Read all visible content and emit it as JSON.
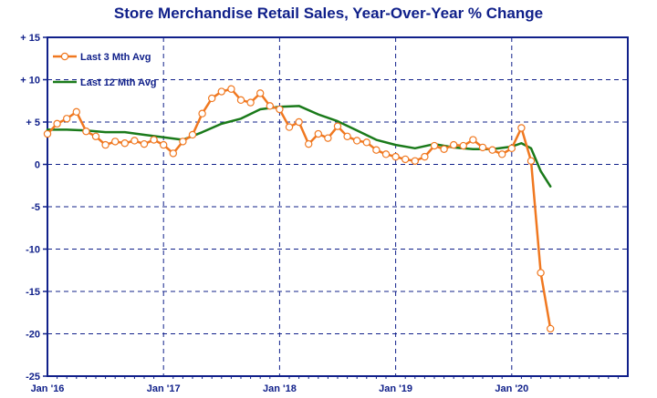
{
  "chart_data": {
    "type": "line",
    "title": "Store Merchandise Retail Sales, Year-Over-Year % Change",
    "xlabel": "",
    "ylabel": "",
    "ylim": [
      -25,
      15
    ],
    "y_ticks": [
      "+ 15",
      "+ 10",
      "+ 5",
      "0",
      "-5",
      "-10",
      "-15",
      "-20",
      "-25"
    ],
    "x_ticks": [
      "Jan '16",
      "Jan '17",
      "Jan '18",
      "Jan '19",
      "Jan '20"
    ],
    "legend": [
      "Last 3 Mth Avg",
      "Last 12 Mth Avg"
    ],
    "legend_position": "top-left",
    "grid": true,
    "colors": {
      "axis": "#10208a",
      "grid": "#10208a",
      "series_3m": "#f07820",
      "series_12m": "#1a7a1a"
    },
    "series": [
      {
        "name": "Last 3 Mth Avg",
        "marker": "circle",
        "x": [
          "2016-01",
          "2016-02",
          "2016-03",
          "2016-04",
          "2016-05",
          "2016-06",
          "2016-07",
          "2016-08",
          "2016-09",
          "2016-10",
          "2016-11",
          "2016-12",
          "2017-01",
          "2017-02",
          "2017-03",
          "2017-04",
          "2017-05",
          "2017-06",
          "2017-07",
          "2017-08",
          "2017-09",
          "2017-10",
          "2017-11",
          "2017-12",
          "2018-01",
          "2018-02",
          "2018-03",
          "2018-04",
          "2018-05",
          "2018-06",
          "2018-07",
          "2018-08",
          "2018-09",
          "2018-10",
          "2018-11",
          "2018-12",
          "2019-01",
          "2019-02",
          "2019-03",
          "2019-04",
          "2019-05",
          "2019-06",
          "2019-07",
          "2019-08",
          "2019-09",
          "2019-10",
          "2019-11",
          "2019-12",
          "2020-01",
          "2020-02",
          "2020-03",
          "2020-04",
          "2020-05"
        ],
        "values": [
          3.6,
          4.8,
          5.4,
          6.2,
          3.9,
          3.3,
          2.3,
          2.7,
          2.5,
          2.8,
          2.4,
          2.9,
          2.3,
          1.3,
          2.7,
          3.5,
          6.0,
          7.8,
          8.6,
          8.9,
          7.6,
          7.3,
          8.4,
          6.9,
          6.5,
          4.4,
          5.0,
          2.4,
          3.6,
          3.1,
          4.5,
          3.3,
          2.8,
          2.6,
          1.7,
          1.2,
          0.9,
          0.6,
          0.4,
          0.9,
          2.2,
          1.8,
          2.3,
          2.2,
          2.9,
          2.0,
          1.7,
          1.2,
          1.9,
          4.3,
          0.4,
          -12.8,
          -19.4
        ]
      },
      {
        "name": "Last 12 Mth Avg",
        "marker": "none",
        "x": [
          "2016-01",
          "2016-03",
          "2016-05",
          "2016-07",
          "2016-09",
          "2016-11",
          "2017-01",
          "2017-03",
          "2017-05",
          "2017-07",
          "2017-09",
          "2017-11",
          "2018-01",
          "2018-03",
          "2018-05",
          "2018-07",
          "2018-09",
          "2018-11",
          "2019-01",
          "2019-03",
          "2019-05",
          "2019-07",
          "2019-09",
          "2019-11",
          "2020-01",
          "2020-02",
          "2020-03",
          "2020-04",
          "2020-05"
        ],
        "values": [
          4.1,
          4.1,
          4.0,
          3.8,
          3.8,
          3.5,
          3.2,
          2.9,
          3.8,
          4.8,
          5.4,
          6.5,
          6.8,
          6.9,
          5.9,
          5.1,
          4.0,
          2.9,
          2.3,
          1.9,
          2.4,
          2.0,
          1.8,
          1.8,
          2.1,
          2.5,
          1.9,
          -0.8,
          -2.6
        ]
      }
    ]
  }
}
